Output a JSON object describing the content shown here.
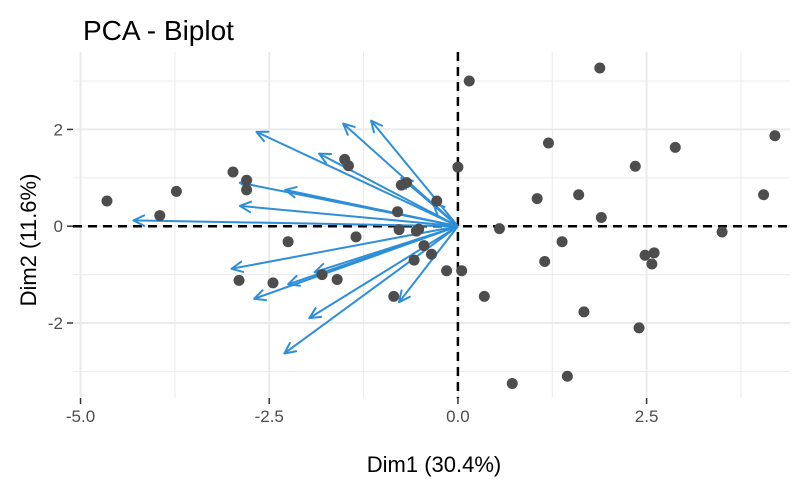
{
  "chart_data": {
    "type": "scatter",
    "title": "PCA - Biplot",
    "xlabel": "Dim1 (30.4%)",
    "ylabel": "Dim2 (11.6%)",
    "xlim": [
      -5.1,
      4.4
    ],
    "ylim": [
      -3.55,
      3.6
    ],
    "xticks": [
      -5.0,
      -2.5,
      0.0,
      2.5
    ],
    "xtick_labels": [
      "-5.0",
      "-2.5",
      "0.0",
      "2.5"
    ],
    "yticks": [
      -2,
      0,
      2
    ],
    "ytick_labels": [
      "-2",
      "0",
      "2"
    ],
    "grid": true,
    "reference_lines": {
      "x": 0,
      "y": 0,
      "style": "dashed"
    },
    "colors": {
      "points": "#4d4d4d",
      "arrows": "#2e8fd8",
      "grid": "#ebebeb",
      "reference": "#000000"
    },
    "points": [
      {
        "x": -4.65,
        "y": 0.52
      },
      {
        "x": -3.73,
        "y": 0.72
      },
      {
        "x": -3.95,
        "y": 0.22
      },
      {
        "x": -2.98,
        "y": 1.12
      },
      {
        "x": -2.8,
        "y": 0.95
      },
      {
        "x": -2.8,
        "y": 0.75
      },
      {
        "x": -2.25,
        "y": -0.32
      },
      {
        "x": -2.9,
        "y": -1.12
      },
      {
        "x": -2.45,
        "y": -1.17
      },
      {
        "x": -1.8,
        "y": -1.0
      },
      {
        "x": -1.6,
        "y": -1.1
      },
      {
        "x": -1.5,
        "y": 1.38
      },
      {
        "x": -1.45,
        "y": 1.25
      },
      {
        "x": -1.35,
        "y": -0.22
      },
      {
        "x": -0.75,
        "y": 0.85
      },
      {
        "x": -0.68,
        "y": 0.9
      },
      {
        "x": -0.8,
        "y": 0.3
      },
      {
        "x": -0.78,
        "y": -0.07
      },
      {
        "x": -0.55,
        "y": -0.1
      },
      {
        "x": -0.52,
        "y": -0.06
      },
      {
        "x": -0.28,
        "y": 0.52
      },
      {
        "x": -0.45,
        "y": -0.4
      },
      {
        "x": -0.35,
        "y": -0.58
      },
      {
        "x": -0.58,
        "y": -0.7
      },
      {
        "x": -0.85,
        "y": -1.45
      },
      {
        "x": -0.15,
        "y": -0.92
      },
      {
        "x": 0.05,
        "y": -0.92
      },
      {
        "x": 0.0,
        "y": 1.22
      },
      {
        "x": 0.15,
        "y": 3.0
      },
      {
        "x": 0.35,
        "y": -1.45
      },
      {
        "x": 0.55,
        "y": -0.05
      },
      {
        "x": 0.72,
        "y": -3.25
      },
      {
        "x": 1.05,
        "y": 0.57
      },
      {
        "x": 1.15,
        "y": -0.73
      },
      {
        "x": 1.2,
        "y": 1.72
      },
      {
        "x": 1.38,
        "y": -0.32
      },
      {
        "x": 1.45,
        "y": -3.1
      },
      {
        "x": 1.6,
        "y": 0.65
      },
      {
        "x": 1.67,
        "y": -1.77
      },
      {
        "x": 1.88,
        "y": 3.27
      },
      {
        "x": 1.9,
        "y": 0.18
      },
      {
        "x": 2.35,
        "y": 1.24
      },
      {
        "x": 2.4,
        "y": -2.1
      },
      {
        "x": 2.48,
        "y": -0.6
      },
      {
        "x": 2.57,
        "y": -0.78
      },
      {
        "x": 2.6,
        "y": -0.55
      },
      {
        "x": 2.88,
        "y": 1.63
      },
      {
        "x": 3.5,
        "y": -0.12
      },
      {
        "x": 4.05,
        "y": 0.65
      },
      {
        "x": 4.2,
        "y": 1.87
      }
    ],
    "arrows": [
      {
        "x": -4.3,
        "y": 0.12
      },
      {
        "x": -2.67,
        "y": 1.95
      },
      {
        "x": -2.29,
        "y": 0.75
      },
      {
        "x": -2.89,
        "y": 0.9
      },
      {
        "x": -2.89,
        "y": 0.42
      },
      {
        "x": -3.0,
        "y": -0.88
      },
      {
        "x": -2.7,
        "y": -1.5
      },
      {
        "x": -2.3,
        "y": -2.63
      },
      {
        "x": -1.97,
        "y": -1.9
      },
      {
        "x": -2.25,
        "y": -1.2
      },
      {
        "x": -1.9,
        "y": -0.95
      },
      {
        "x": -1.84,
        "y": 1.5
      },
      {
        "x": -1.52,
        "y": 2.12
      },
      {
        "x": -1.15,
        "y": 2.18
      },
      {
        "x": -0.75,
        "y": 1.0
      },
      {
        "x": -0.78,
        "y": -1.57
      },
      {
        "x": -0.33,
        "y": 0.47
      }
    ]
  }
}
